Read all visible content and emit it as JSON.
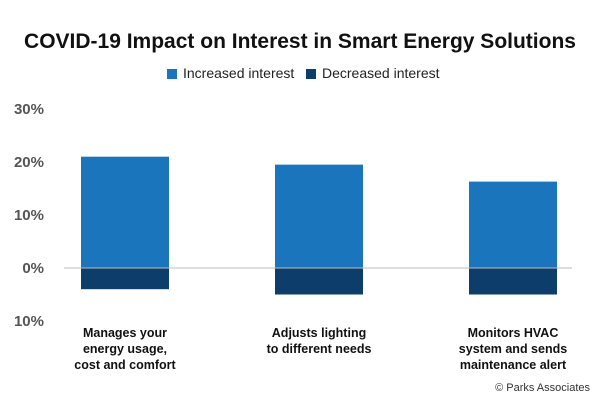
{
  "chart_data": {
    "type": "bar",
    "title": "COVID-19 Impact on Interest in Smart Energy Solutions",
    "legend_position": "top-center",
    "categories": [
      [
        "Manages your",
        "energy usage,",
        "cost and comfort"
      ],
      [
        "Adjusts lighting",
        "to different needs"
      ],
      [
        "Monitors HVAC",
        "system and sends",
        "maintenance alert"
      ]
    ],
    "series": [
      {
        "name": "Increased interest",
        "color": "#1b75bc",
        "values": [
          21,
          19.5,
          16.3
        ]
      },
      {
        "name": "Decreased interest",
        "color": "#0d3e6b",
        "values": [
          -4,
          -5,
          -5
        ]
      }
    ],
    "ylim": [
      -10,
      30
    ],
    "yticks": [
      30,
      20,
      10,
      0,
      -10
    ],
    "ytick_labels": [
      "30%",
      "20%",
      "10%",
      "0%",
      "10%"
    ],
    "grid": false,
    "stacked": true
  },
  "credit": "© Parks Associates"
}
